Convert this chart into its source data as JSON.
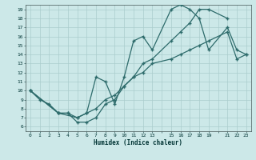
{
  "xlabel": "Humidex (Indice chaleur)",
  "bg_color": "#cce8e8",
  "grid_color": "#aacccc",
  "line_color": "#2d6b6b",
  "xlim": [
    -0.5,
    23.5
  ],
  "ylim": [
    5.5,
    19.5
  ],
  "line1_x": [
    0,
    1,
    2,
    3,
    4,
    5,
    6,
    7,
    8,
    9,
    10,
    11,
    12,
    13,
    15,
    16,
    17,
    18,
    19,
    21
  ],
  "line1_y": [
    10.0,
    9.0,
    8.5,
    7.5,
    7.5,
    6.5,
    6.5,
    7.0,
    8.5,
    9.0,
    10.5,
    11.5,
    13.0,
    13.5,
    15.5,
    16.5,
    17.5,
    19.0,
    19.0,
    18.0
  ],
  "line2_x": [
    0,
    3,
    4,
    5,
    6,
    7,
    8,
    9,
    10,
    11,
    12,
    13,
    15,
    16,
    17,
    18,
    19,
    21,
    22,
    23
  ],
  "line2_y": [
    10.0,
    7.5,
    7.5,
    7.0,
    7.5,
    11.5,
    11.0,
    8.5,
    11.5,
    15.5,
    16.0,
    14.5,
    19.0,
    19.5,
    19.0,
    18.0,
    14.5,
    17.0,
    14.5,
    14.0
  ],
  "line3_x": [
    0,
    3,
    5,
    6,
    7,
    8,
    9,
    10,
    11,
    12,
    13,
    15,
    16,
    17,
    18,
    19,
    21,
    22,
    23
  ],
  "line3_y": [
    10.0,
    7.5,
    7.0,
    7.5,
    8.0,
    9.0,
    9.5,
    10.5,
    11.5,
    12.0,
    13.0,
    13.5,
    14.0,
    14.5,
    15.0,
    15.5,
    16.5,
    13.5,
    14.0
  ]
}
